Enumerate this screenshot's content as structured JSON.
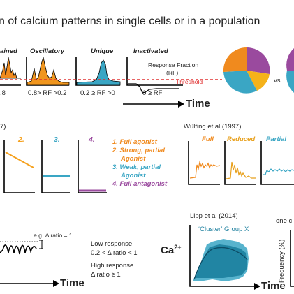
{
  "title": "n of calcium patterns in single cells or in a population",
  "panel_a": {
    "labels": [
      {
        "text": "ained",
        "color": "#e8821e"
      },
      {
        "text": "Oscillatory",
        "color": "#e89a1e"
      },
      {
        "text": "Unique",
        "color": "#3aa6c4"
      },
      {
        "text": "Inactivated",
        "color": "#9a4a9e"
      }
    ],
    "response_fraction_line1": "Response Fraction",
    "response_fraction_line2": "(RF)",
    "threshold": "Threshold",
    "rf_labels": [
      ".8",
      "0.8> RF >0.2",
      "0.2 ≥ RF >0",
      "0 ≥ RF"
    ],
    "time": "Time",
    "vs": "vs",
    "pie_colors": [
      "#f08a1e",
      "#9a4a9e",
      "#3aa6c4",
      "#f5b21a"
    ]
  },
  "panel_b": {
    "year_partial": "7)",
    "numbers": [
      "2.",
      "3.",
      "4."
    ],
    "legend": [
      {
        "text": "1. Full agonist",
        "color": "#f08a1e"
      },
      {
        "text": "2. Strong, partial",
        "color": "#f08a1e"
      },
      {
        "text": "Agonist",
        "color": "#f08a1e"
      },
      {
        "text": "3. Weak, partial",
        "color": "#3aa6c4"
      },
      {
        "text": "Agonist",
        "color": "#3aa6c4"
      },
      {
        "text": "4. Full antagonist",
        "color": "#9a4a9e"
      }
    ],
    "wulfing_ref": "Wülfing et al (1997)",
    "wulfing_labels": [
      {
        "text": "Full",
        "color": "#f08a1e"
      },
      {
        "text": "Reduced",
        "color": "#e8a11e"
      },
      {
        "text": "Partial",
        "color": "#3aa6c4"
      }
    ]
  },
  "panel_c": {
    "eg": "e.g. Δ ratio = 1",
    "low_response": "Low response",
    "low_range": "0.2 < Δ ratio < 1",
    "high_response": "High response",
    "high_range": "Δ ratio ≥ 1",
    "time": "Time",
    "lipp_ref": "Lipp et al (2014)",
    "cluster": "‘Cluster’ Group X",
    "ca_base": "Ca",
    "ca_sup": "2+",
    "time2": "Time",
    "one_c": "one c",
    "frequency": "Frequency (%)"
  }
}
